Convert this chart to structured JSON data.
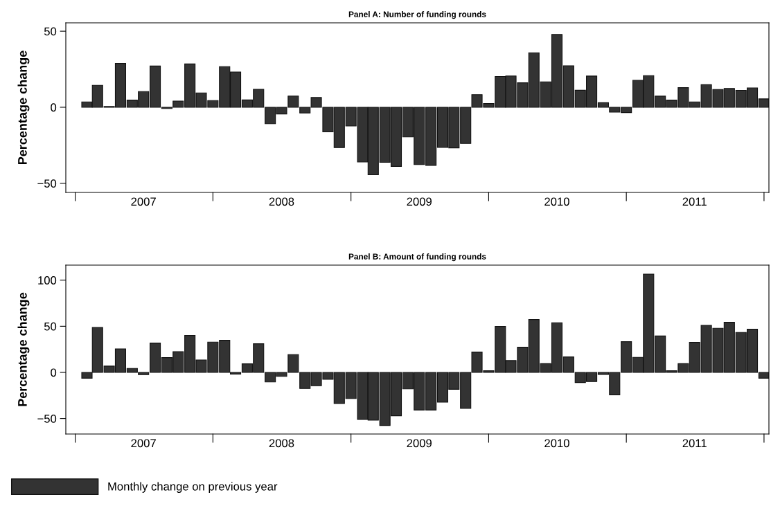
{
  "chart_data": [
    {
      "type": "bar",
      "title": "Panel A: Number of funding rounds",
      "ylabel": "Percentage change",
      "x": [
        "2007-02",
        "2007-03",
        "2007-04",
        "2007-05",
        "2007-06",
        "2007-07",
        "2007-08",
        "2007-09",
        "2007-10",
        "2007-11",
        "2007-12",
        "2008-01",
        "2008-02",
        "2008-03",
        "2008-04",
        "2008-05",
        "2008-06",
        "2008-07",
        "2008-08",
        "2008-09",
        "2008-10",
        "2008-11",
        "2008-12",
        "2009-01",
        "2009-02",
        "2009-03",
        "2009-04",
        "2009-05",
        "2009-06",
        "2009-07",
        "2009-08",
        "2009-09",
        "2009-10",
        "2009-11",
        "2009-12",
        "2010-01",
        "2010-02",
        "2010-03",
        "2010-04",
        "2010-05",
        "2010-06",
        "2010-07",
        "2010-08",
        "2010-09",
        "2010-10",
        "2010-11",
        "2010-12",
        "2011-01",
        "2011-02",
        "2011-03",
        "2011-04",
        "2011-05",
        "2011-06",
        "2011-07",
        "2011-08",
        "2011-09",
        "2011-10",
        "2011-11",
        "2011-12",
        "2012-01"
      ],
      "series": [
        {
          "color": "#333333",
          "values": [
            3.5,
            14.4,
            0.5,
            28.8,
            4.7,
            10.3,
            27.1,
            -0.8,
            4.1,
            28.5,
            9.4,
            4.4,
            26.7,
            23.2,
            4.8,
            11.8,
            -10.8,
            -4.4,
            7.4,
            -3.8,
            6.4,
            -16.2,
            -26.5,
            -12.3,
            -35.9,
            -44.4,
            -36.2,
            -38.9,
            -19.5,
            -37.7,
            -38.2,
            -26.4,
            -26.7,
            -23.8,
            8.3,
            2.4,
            20.2,
            20.6,
            16.1,
            35.8,
            16.7,
            47.9,
            27.3,
            11.2,
            20.5,
            3.0,
            -3.2,
            -3.5,
            17.7,
            20.8,
            7.3,
            4.7,
            12.9,
            3.5,
            14.8,
            11.7,
            12.4,
            11.1,
            12.7,
            5.5
          ]
        }
      ],
      "xlim": [
        "2006-12-07",
        "2012-01-14"
      ],
      "xticks": [
        {
          "value": "2007-01",
          "label": null
        },
        {
          "value": "2007-07",
          "label": "2007"
        },
        {
          "value": "2008-01",
          "label": null
        },
        {
          "value": "2008-07",
          "label": "2008"
        },
        {
          "value": "2009-01",
          "label": null
        },
        {
          "value": "2009-07",
          "label": "2009"
        },
        {
          "value": "2010-01",
          "label": null
        },
        {
          "value": "2010-07",
          "label": "2010"
        },
        {
          "value": "2011-01",
          "label": null
        },
        {
          "value": "2011-07",
          "label": "2011"
        },
        {
          "value": "2012-01",
          "label": null
        }
      ],
      "ylim": [
        -56,
        55.5
      ],
      "yticks": [
        {
          "value": -50,
          "label": "−50"
        },
        0,
        50
      ],
      "grid": false
    },
    {
      "type": "bar",
      "title": "Panel B: Amount of funding rounds",
      "ylabel": "Percentage change",
      "x": [
        "2007-02",
        "2007-03",
        "2007-04",
        "2007-05",
        "2007-06",
        "2007-07",
        "2007-08",
        "2007-09",
        "2007-10",
        "2007-11",
        "2007-12",
        "2008-01",
        "2008-02",
        "2008-03",
        "2008-04",
        "2008-05",
        "2008-06",
        "2008-07",
        "2008-08",
        "2008-09",
        "2008-10",
        "2008-11",
        "2008-12",
        "2009-01",
        "2009-02",
        "2009-03",
        "2009-04",
        "2009-05",
        "2009-06",
        "2009-07",
        "2009-08",
        "2009-09",
        "2009-10",
        "2009-11",
        "2009-12",
        "2010-01",
        "2010-02",
        "2010-03",
        "2010-04",
        "2010-05",
        "2010-06",
        "2010-07",
        "2010-08",
        "2010-09",
        "2010-10",
        "2010-11",
        "2010-12",
        "2011-01",
        "2011-02",
        "2011-03",
        "2011-04",
        "2011-05",
        "2011-06",
        "2011-07",
        "2011-08",
        "2011-09",
        "2011-10",
        "2011-11",
        "2011-12",
        "2012-01"
      ],
      "series": [
        {
          "name": "Monthly change on previous year",
          "color": "#333333",
          "values": [
            -6.3,
            48.8,
            6.8,
            25.5,
            4.3,
            -2.5,
            31.8,
            16,
            22.5,
            40,
            13.5,
            32.8,
            34.8,
            -1.8,
            9.3,
            31,
            -10.3,
            -4.3,
            19.3,
            -17.5,
            -14.5,
            -7.5,
            -33.8,
            -28.3,
            -51,
            -51.8,
            -57.5,
            -47,
            -17.8,
            -40.8,
            -40.8,
            -32.3,
            -18.3,
            -39,
            22,
            1.8,
            49.8,
            12.8,
            27.3,
            57.3,
            9.5,
            53.8,
            16.8,
            -11,
            -10,
            -2.3,
            -24.3,
            33.3,
            16.3,
            106.5,
            39.5,
            1.8,
            9.5,
            32.5,
            51,
            47.8,
            54.3,
            43.3,
            46.8,
            -6.3
          ]
        }
      ],
      "xlim": [
        "2006-12-07",
        "2012-01-14"
      ],
      "xticks": [
        {
          "value": "2007-01",
          "label": null
        },
        {
          "value": "2007-07",
          "label": "2007"
        },
        {
          "value": "2008-01",
          "label": null
        },
        {
          "value": "2008-07",
          "label": "2008"
        },
        {
          "value": "2009-01",
          "label": null
        },
        {
          "value": "2009-07",
          "label": "2009"
        },
        {
          "value": "2010-01",
          "label": null
        },
        {
          "value": "2010-07",
          "label": "2010"
        },
        {
          "value": "2011-01",
          "label": null
        },
        {
          "value": "2011-07",
          "label": "2011"
        },
        {
          "value": "2012-01",
          "label": null
        }
      ],
      "ylim": [
        -66.8,
        116.3
      ],
      "yticks": [
        {
          "value": -50,
          "label": "−50"
        },
        0,
        50,
        100
      ],
      "grid": false,
      "legend": "bottom left"
    }
  ]
}
